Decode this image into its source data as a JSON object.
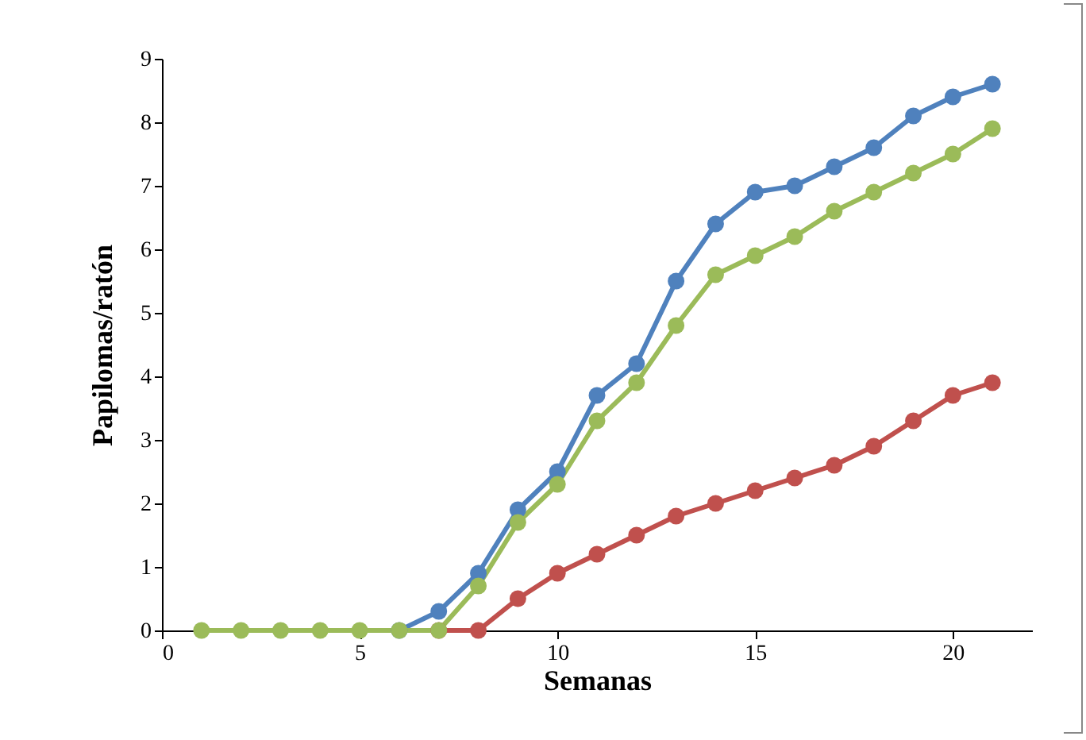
{
  "chart_data": {
    "type": "line",
    "xlabel": "Semanas",
    "ylabel": "Papilomas/ratón",
    "x": [
      1,
      2,
      3,
      4,
      5,
      6,
      7,
      8,
      9,
      10,
      11,
      12,
      13,
      14,
      15,
      16,
      17,
      18,
      19,
      20,
      21
    ],
    "series": [
      {
        "color": "#4f81bd",
        "values": [
          null,
          null,
          null,
          null,
          null,
          0,
          0.3,
          0.9,
          1.9,
          2.5,
          3.7,
          4.2,
          5.5,
          6.4,
          6.9,
          7.0,
          7.3,
          7.6,
          8.1,
          8.4,
          8.6
        ]
      },
      {
        "color": "#c0504d",
        "values": [
          null,
          null,
          null,
          null,
          null,
          null,
          0,
          0,
          0.5,
          0.9,
          1.2,
          1.5,
          1.8,
          2.0,
          2.2,
          2.4,
          2.6,
          2.9,
          3.3,
          3.7,
          3.9
        ]
      },
      {
        "color": "#9bbb59",
        "values": [
          0,
          0,
          0,
          0,
          0,
          0,
          0,
          0.7,
          1.7,
          2.3,
          3.3,
          3.9,
          4.8,
          5.6,
          5.9,
          6.2,
          6.6,
          6.9,
          7.2,
          7.5,
          7.9
        ]
      }
    ],
    "xlim": [
      0,
      22
    ],
    "xticks": [
      0,
      5,
      10,
      15,
      20
    ],
    "ylim": [
      0,
      9
    ],
    "yticks": [
      0,
      1,
      2,
      3,
      4,
      5,
      6,
      7,
      8,
      9
    ],
    "grid": false,
    "legend": false,
    "marker": "circle",
    "line_style": "solid"
  }
}
